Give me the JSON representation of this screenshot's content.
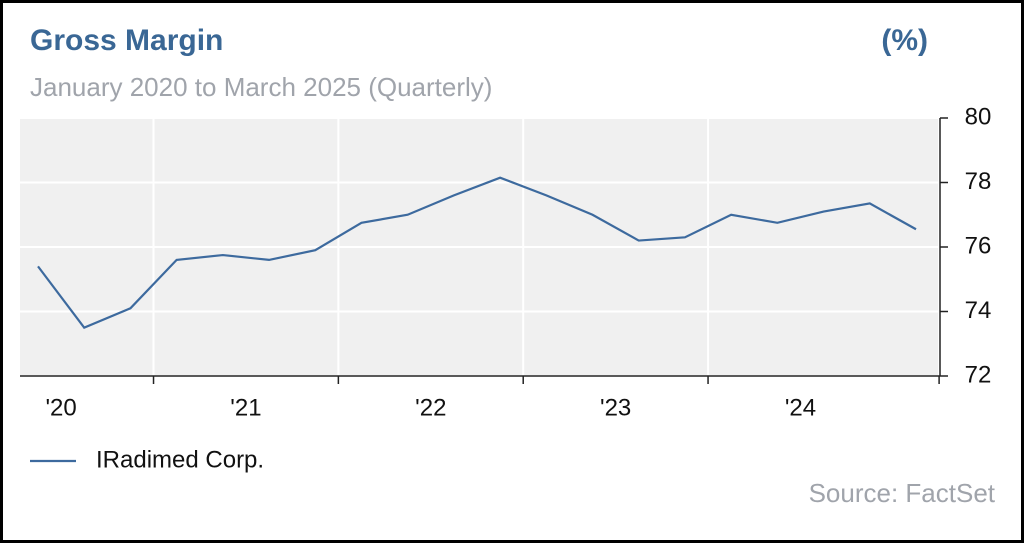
{
  "chart_data": {
    "type": "line",
    "title": "Gross Margin",
    "unit_label": "(%)",
    "subtitle": "January 2020 to March 2025 (Quarterly)",
    "source": "Source: FactSet",
    "categories": [
      "'20",
      null,
      null,
      null,
      "'21",
      null,
      null,
      null,
      "'22",
      null,
      null,
      null,
      "'23",
      null,
      null,
      null,
      "'24",
      null,
      null,
      null
    ],
    "series": [
      {
        "name": "IRadimed Corp.",
        "color": "#3d6a9e",
        "values": [
          75.4,
          73.5,
          74.1,
          75.6,
          75.75,
          75.6,
          75.9,
          76.75,
          77.0,
          77.6,
          78.15,
          77.6,
          77.0,
          76.2,
          76.3,
          77.0,
          76.75,
          77.1,
          77.35,
          76.55
        ]
      }
    ],
    "ylim": [
      72,
      80
    ],
    "yticks": [
      72,
      74,
      76,
      78,
      80
    ],
    "grid": true,
    "legend": "bottom-left"
  }
}
